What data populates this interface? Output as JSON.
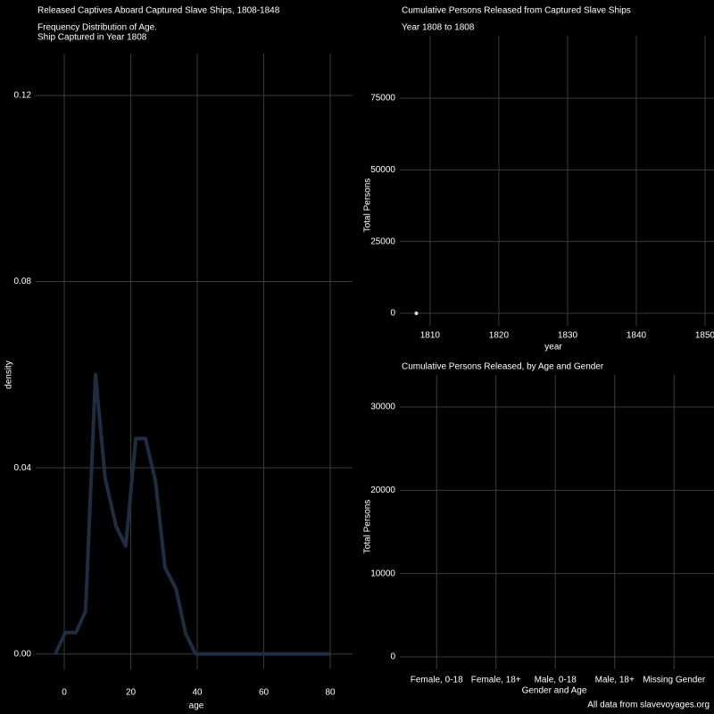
{
  "chart_data": [
    {
      "type": "line",
      "title": "Released Captives Aboard Captured Slave Ships, 1808-1848",
      "subtitle": [
        "Frequency Distribution of Age.",
        "Ship Captured in Year 1808"
      ],
      "x_label": "age",
      "y_label": "density",
      "x": [
        -2.7,
        0.3,
        3.5,
        6.4,
        9.4,
        12.3,
        15.6,
        18.5,
        21.5,
        24.4,
        27.4,
        30.3,
        33.6,
        36.5,
        39.5,
        80
      ],
      "series": [
        {
          "color": "#1e2d42",
          "values": [
            0,
            0.0046,
            0.0046,
            0.0092,
            0.06,
            0.0377,
            0.0274,
            0.0232,
            0.0463,
            0.0463,
            0.0373,
            0.0186,
            0.014,
            0.0044,
            0,
            0
          ]
        }
      ],
      "xlim": [
        -8.6,
        86.7
      ],
      "ylim": [
        -0.0033,
        0.129
      ],
      "xticks": [
        0,
        20,
        40,
        60,
        80
      ],
      "yticks": [
        {
          "value": 0,
          "label": "0.00"
        },
        0.04,
        0.08,
        0.12
      ],
      "grid": true
    },
    {
      "type": "scatter",
      "title": "Cumulative Persons Released from Captured Slave Ships",
      "subtitle": [
        "Year 1808 to 1808"
      ],
      "x_label": "year",
      "y_label": "Total Persons",
      "x": [
        1808
      ],
      "series": [
        {
          "color": "#f4d0d0",
          "values": [
            0
          ]
        }
      ],
      "xlim": [
        1805.6,
        1851.3
      ],
      "ylim": [
        -4357,
        96786
      ],
      "xticks": [
        1810,
        1820,
        1830,
        1840,
        1850
      ],
      "yticks": [
        0,
        25000,
        50000,
        75000
      ],
      "grid": true
    },
    {
      "type": "bar",
      "title": "Cumulative Persons Released, by Age and Gender",
      "x_label": "Gender and Age",
      "y_label": "Total Persons",
      "categories": [
        "Female, 0-18",
        "Female, 18+",
        "Male, 0-18",
        "Male, 18+",
        "Missing Gender"
      ],
      "values": [
        0,
        0,
        0,
        0,
        0
      ],
      "color": "#1e2d42",
      "ylim": [
        -1500,
        33857
      ],
      "yticks": [
        0,
        10000,
        20000,
        30000
      ],
      "grid": true,
      "caption": "All data from slavevoyages.org"
    }
  ]
}
